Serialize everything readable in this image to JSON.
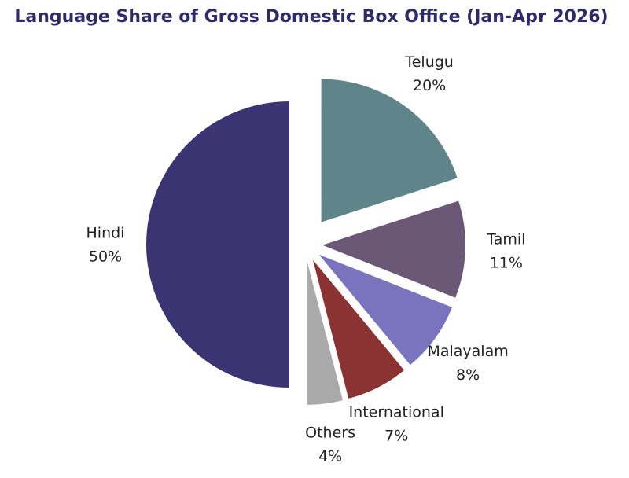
{
  "chart_data": {
    "type": "pie",
    "title": "Language Share of Gross Domestic Box Office (Jan-Apr 2026)",
    "categories": [
      "Telugu",
      "Tamil",
      "Malayalam",
      "International",
      "Others",
      "Hindi"
    ],
    "values": [
      20,
      11,
      8,
      7,
      4,
      50
    ],
    "value_labels": [
      "20%",
      "11%",
      "8%",
      "7%",
      "4%",
      "50%"
    ],
    "colors": [
      "#5f8489",
      "#6b5877",
      "#7a73bd",
      "#8b3333",
      "#a9aaa9",
      "#3a3472"
    ]
  }
}
